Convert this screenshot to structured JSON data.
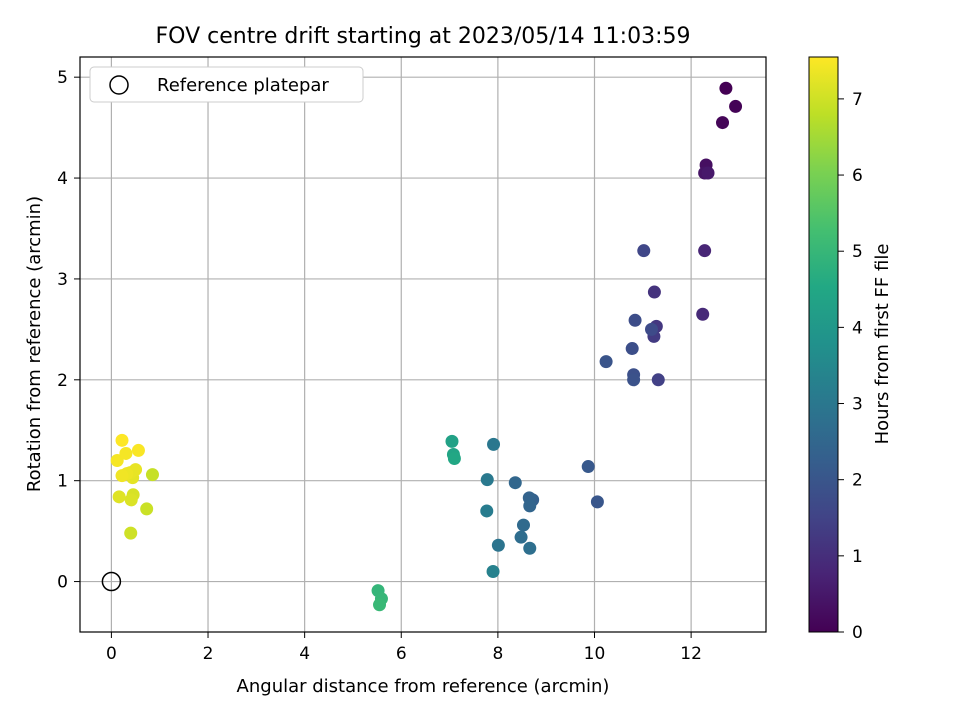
{
  "chart_data": {
    "type": "scatter",
    "title": "FOV centre drift starting at 2023/05/14 11:03:59",
    "xlabel": "Angular distance from reference (arcmin)",
    "ylabel": "Rotation from reference (arcmin)",
    "xlim": [
      -0.65,
      13.55
    ],
    "ylim": [
      -0.5,
      5.2
    ],
    "xticks": [
      0,
      2,
      4,
      6,
      8,
      10,
      12
    ],
    "yticks": [
      0,
      1,
      2,
      3,
      4,
      5
    ],
    "grid": true,
    "legend": {
      "position": "top-left",
      "entries": [
        "Reference platepar"
      ]
    },
    "reference_point": {
      "x": 0,
      "y": 0,
      "marker": "open-circle"
    },
    "colorbar": {
      "label": "Hours from first FF file",
      "colormap": "viridis",
      "range": [
        0,
        7.55
      ],
      "ticks": [
        0,
        1,
        2,
        3,
        4,
        5,
        6,
        7
      ]
    },
    "points": [
      {
        "x": 12.72,
        "y": 4.89,
        "c": 0.0
      },
      {
        "x": 12.92,
        "y": 4.71,
        "c": 0.05
      },
      {
        "x": 12.65,
        "y": 4.55,
        "c": 0.1
      },
      {
        "x": 12.31,
        "y": 4.13,
        "c": 0.3
      },
      {
        "x": 12.28,
        "y": 4.05,
        "c": 0.4
      },
      {
        "x": 12.35,
        "y": 4.05,
        "c": 0.5
      },
      {
        "x": 12.28,
        "y": 3.28,
        "c": 0.8
      },
      {
        "x": 12.24,
        "y": 2.65,
        "c": 0.9
      },
      {
        "x": 11.24,
        "y": 2.87,
        "c": 1.1
      },
      {
        "x": 11.28,
        "y": 2.53,
        "c": 1.2
      },
      {
        "x": 11.23,
        "y": 2.43,
        "c": 1.3
      },
      {
        "x": 11.32,
        "y": 2.0,
        "c": 1.45
      },
      {
        "x": 11.02,
        "y": 3.28,
        "c": 1.6
      },
      {
        "x": 11.18,
        "y": 2.5,
        "c": 1.7
      },
      {
        "x": 10.84,
        "y": 2.59,
        "c": 1.75
      },
      {
        "x": 10.78,
        "y": 2.31,
        "c": 1.8
      },
      {
        "x": 10.81,
        "y": 2.05,
        "c": 1.85
      },
      {
        "x": 10.81,
        "y": 2.0,
        "c": 1.9
      },
      {
        "x": 10.24,
        "y": 2.18,
        "c": 1.95
      },
      {
        "x": 10.06,
        "y": 0.79,
        "c": 2.0
      },
      {
        "x": 9.87,
        "y": 1.14,
        "c": 2.1
      },
      {
        "x": 8.72,
        "y": 0.81,
        "c": 2.3
      },
      {
        "x": 8.65,
        "y": 0.83,
        "c": 2.4
      },
      {
        "x": 8.66,
        "y": 0.75,
        "c": 2.45
      },
      {
        "x": 8.36,
        "y": 0.98,
        "c": 2.5
      },
      {
        "x": 8.53,
        "y": 0.56,
        "c": 2.6
      },
      {
        "x": 8.48,
        "y": 0.44,
        "c": 2.7
      },
      {
        "x": 8.66,
        "y": 0.33,
        "c": 2.75
      },
      {
        "x": 8.01,
        "y": 0.36,
        "c": 2.9
      },
      {
        "x": 7.91,
        "y": 1.36,
        "c": 3.0
      },
      {
        "x": 7.78,
        "y": 1.01,
        "c": 3.05
      },
      {
        "x": 7.77,
        "y": 0.7,
        "c": 3.15
      },
      {
        "x": 7.9,
        "y": 0.1,
        "c": 3.3
      },
      {
        "x": 7.05,
        "y": 1.39,
        "c": 4.3
      },
      {
        "x": 7.08,
        "y": 1.26,
        "c": 4.4
      },
      {
        "x": 7.1,
        "y": 1.22,
        "c": 4.5
      },
      {
        "x": 5.52,
        "y": -0.09,
        "c": 4.95
      },
      {
        "x": 5.59,
        "y": -0.17,
        "c": 5.0
      },
      {
        "x": 5.55,
        "y": -0.23,
        "c": 5.05
      },
      {
        "x": 0.85,
        "y": 1.06,
        "c": 6.9
      },
      {
        "x": 0.73,
        "y": 0.72,
        "c": 6.95
      },
      {
        "x": 0.4,
        "y": 0.48,
        "c": 7.0
      },
      {
        "x": 0.45,
        "y": 0.86,
        "c": 7.1
      },
      {
        "x": 0.41,
        "y": 0.81,
        "c": 7.15
      },
      {
        "x": 0.16,
        "y": 0.84,
        "c": 7.2
      },
      {
        "x": 0.44,
        "y": 1.03,
        "c": 7.25
      },
      {
        "x": 0.5,
        "y": 1.11,
        "c": 7.3
      },
      {
        "x": 0.39,
        "y": 1.08,
        "c": 7.3
      },
      {
        "x": 0.32,
        "y": 1.07,
        "c": 7.35
      },
      {
        "x": 0.22,
        "y": 1.05,
        "c": 7.4
      },
      {
        "x": 0.12,
        "y": 1.2,
        "c": 7.45
      },
      {
        "x": 0.3,
        "y": 1.27,
        "c": 7.45
      },
      {
        "x": 0.56,
        "y": 1.3,
        "c": 7.5
      },
      {
        "x": 0.22,
        "y": 1.4,
        "c": 7.55
      }
    ]
  }
}
